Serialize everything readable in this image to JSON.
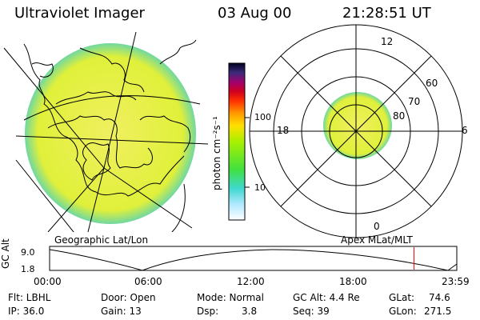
{
  "header": {
    "instrument": "Ultraviolet Imager",
    "date": "03 Aug 00",
    "time": "21:28:51 UT"
  },
  "colorbar": {
    "unit_label": "photon cm⁻²s⁻¹",
    "ticks": [
      "100",
      "10"
    ]
  },
  "left_panel": {
    "label": "Geographic Lat/Lon"
  },
  "polar_plot": {
    "label": "Apex MLat/MLT",
    "mlt_labels": [
      "12",
      "18",
      "6",
      "0"
    ],
    "mlat_labels": [
      "60",
      "70",
      "80"
    ]
  },
  "timeline": {
    "axis_title": "GC Alt",
    "y_ticks": [
      "9.0",
      "1.8"
    ],
    "x_ticks": [
      "00:00",
      "06:00",
      "12:00",
      "18:00",
      "23:59"
    ],
    "marker_time_fraction": 0.895,
    "marker_color": "#ff0000"
  },
  "info": {
    "filter": "Flt: LBHL",
    "ip": "IP: 36.0",
    "door": "Door: Open",
    "gain": "Gain: 13",
    "mode": "Mode: Normal",
    "dsp_label": "Dsp:",
    "dsp_value": "3.8",
    "gc_alt": "GC Alt: 4.4 Re",
    "seq": "Seq: 39",
    "glat_label": "GLat:",
    "glat_value": "74.6",
    "glon_label": "GLon:",
    "glon_value": "271.5"
  },
  "colors": {
    "aurora_fill": "#e4f23a",
    "aurora_edge": "#3fd0b8",
    "accent": "#ff0000"
  }
}
